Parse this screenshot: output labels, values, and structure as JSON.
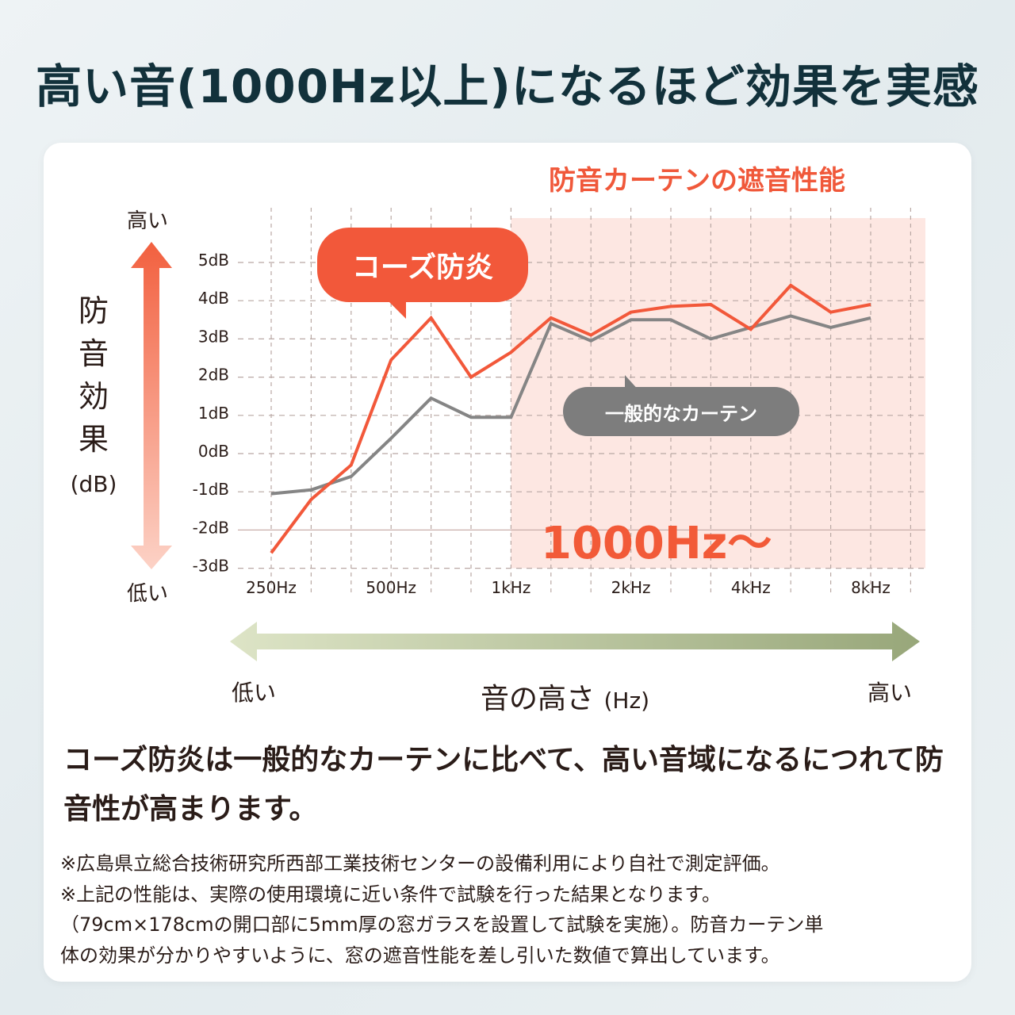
{
  "title": "高い音(1000Hz以上)になるほど効果を実感",
  "subtitle": "防音カーテンの遮音性能",
  "y_axis": {
    "high": "高い",
    "low": "低い",
    "name": "防音効果",
    "unit": "(dB)"
  },
  "x_axis": {
    "low": "低い",
    "name": "音の高さ",
    "unit": "(Hz)",
    "high": "高い"
  },
  "highlight_label": "1000Hz〜",
  "colors": {
    "kose": "#f2583a",
    "general": "#858585",
    "highlight": "#fde7e2",
    "title": "#12313b"
  },
  "statement": "コーズ防炎は一般的なカーテンに比べて、高い音域になるにつれて防音性が高まります。",
  "notes": [
    "※広島県立総合技術研究所西部工業技術センターの設備利用により自社で測定評価。",
    "※上記の性能は、実際の使用環境に近い条件で試験を行った結果となります。",
    "（79cm×178cmの開口部に5mm厚の窓ガラスを設置して試験を実施）。防音カーテン単",
    "体の効果が分かりやすいように、窓の遮音性能を差し引いた数値で算出しています。"
  ],
  "chart_data": {
    "type": "line",
    "categories": [
      "250Hz",
      "",
      "",
      "500Hz",
      "",
      "",
      "1kHz",
      "",
      "",
      "2kHz",
      "",
      "",
      "4kHz",
      "",
      "",
      "8kHz"
    ],
    "y_ticks": [
      "5dB",
      "4dB",
      "3dB",
      "2dB",
      "1dB",
      "0dB",
      "-1dB",
      "-2dB",
      "-3dB"
    ],
    "ylim": [
      -3,
      5
    ],
    "grid": true,
    "highlight_from_category_index": 6,
    "series": [
      {
        "name": "コーズ防炎",
        "color": "#f2583a",
        "values": [
          -2.6,
          -1.2,
          -0.3,
          2.45,
          3.55,
          2.0,
          2.65,
          3.55,
          3.1,
          3.7,
          3.85,
          3.9,
          3.25,
          4.4,
          3.7,
          3.9
        ]
      },
      {
        "name": "一般的なカーテン",
        "color": "#858585",
        "values": [
          -1.05,
          -0.95,
          -0.6,
          0.4,
          1.45,
          0.95,
          0.95,
          3.4,
          2.95,
          3.5,
          3.5,
          3.0,
          3.3,
          3.6,
          3.3,
          3.55
        ]
      }
    ]
  }
}
